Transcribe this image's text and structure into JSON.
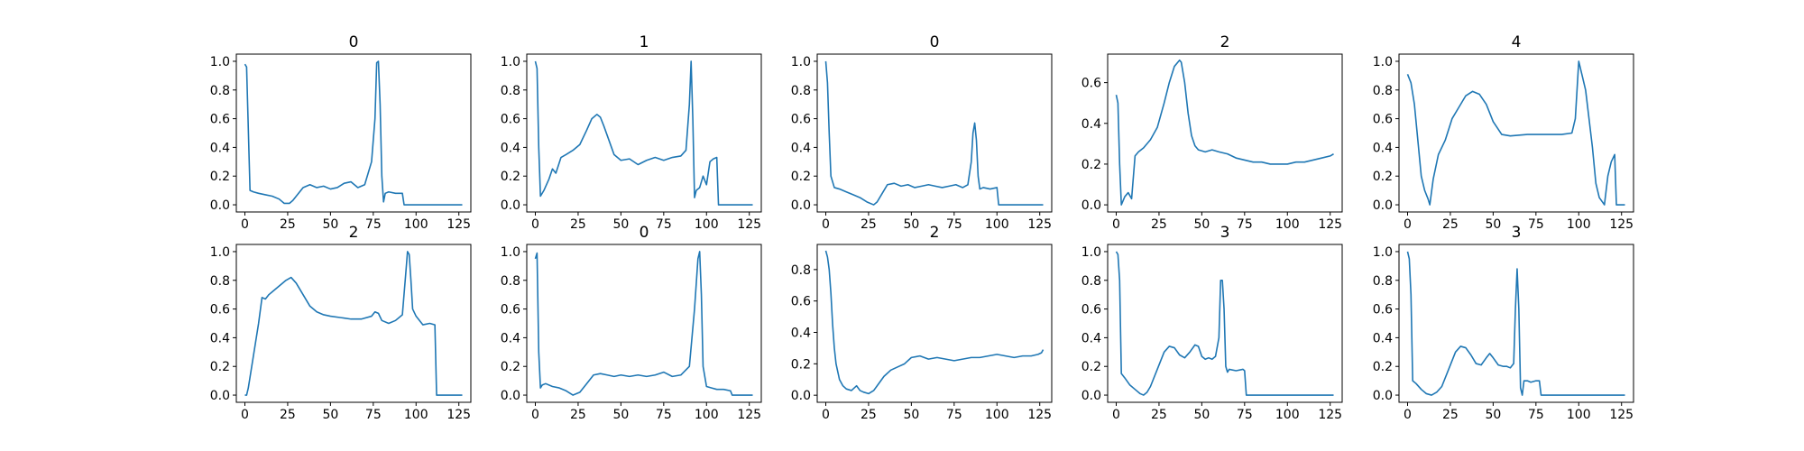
{
  "chart_data": [
    {
      "type": "line",
      "title": "0",
      "xlabel": "",
      "ylabel": "",
      "xlim": [
        -5,
        132
      ],
      "ylim": [
        -0.05,
        1.05
      ],
      "x_ticks": [
        0,
        25,
        50,
        75,
        100,
        125
      ],
      "y_ticks": [
        0.0,
        0.2,
        0.4,
        0.6,
        0.8,
        1.0
      ],
      "color": "#1f77b4",
      "grid": false,
      "series": [
        {
          "x": [
            0,
            1,
            3,
            5,
            8,
            12,
            16,
            20,
            23,
            26,
            28,
            30,
            34,
            38,
            42,
            46,
            50,
            54,
            58,
            62,
            66,
            70,
            74,
            76,
            77,
            78,
            79,
            80,
            81,
            82,
            84,
            88,
            92,
            93,
            94,
            100,
            110,
            120,
            127
          ],
          "y": [
            0.98,
            0.96,
            0.1,
            0.09,
            0.08,
            0.07,
            0.06,
            0.04,
            0.01,
            0.01,
            0.03,
            0.06,
            0.12,
            0.14,
            0.12,
            0.13,
            0.11,
            0.12,
            0.15,
            0.16,
            0.12,
            0.14,
            0.3,
            0.6,
            0.99,
            1.0,
            0.7,
            0.2,
            0.02,
            0.08,
            0.09,
            0.08,
            0.08,
            0.0,
            0.0,
            0.0,
            0.0,
            0.0,
            0.0
          ]
        }
      ]
    },
    {
      "type": "line",
      "title": "1",
      "xlabel": "",
      "ylabel": "",
      "xlim": [
        -5,
        132
      ],
      "ylim": [
        -0.05,
        1.05
      ],
      "x_ticks": [
        0,
        25,
        50,
        75,
        100,
        125
      ],
      "y_ticks": [
        0.0,
        0.2,
        0.4,
        0.6,
        0.8,
        1.0
      ],
      "color": "#1f77b4",
      "grid": false,
      "series": [
        {
          "x": [
            0,
            1,
            2,
            3,
            5,
            8,
            10,
            12,
            15,
            18,
            22,
            26,
            30,
            33,
            36,
            38,
            40,
            43,
            46,
            50,
            55,
            60,
            65,
            70,
            75,
            80,
            85,
            88,
            90,
            91,
            92,
            93,
            94,
            96,
            98,
            100,
            102,
            104,
            106,
            107,
            108,
            112,
            120,
            127
          ],
          "y": [
            1.0,
            0.95,
            0.4,
            0.06,
            0.1,
            0.18,
            0.25,
            0.22,
            0.33,
            0.35,
            0.38,
            0.42,
            0.52,
            0.6,
            0.63,
            0.61,
            0.55,
            0.45,
            0.35,
            0.31,
            0.32,
            0.28,
            0.31,
            0.33,
            0.31,
            0.33,
            0.34,
            0.38,
            0.7,
            1.0,
            0.6,
            0.05,
            0.1,
            0.12,
            0.2,
            0.14,
            0.3,
            0.32,
            0.33,
            0.0,
            0.0,
            0.0,
            0.0,
            0.0
          ]
        }
      ]
    },
    {
      "type": "line",
      "title": "0",
      "xlabel": "",
      "ylabel": "",
      "xlim": [
        -5,
        132
      ],
      "ylim": [
        -0.05,
        1.05
      ],
      "x_ticks": [
        0,
        25,
        50,
        75,
        100,
        125
      ],
      "y_ticks": [
        0.0,
        0.2,
        0.4,
        0.6,
        0.8,
        1.0
      ],
      "color": "#1f77b4",
      "grid": false,
      "series": [
        {
          "x": [
            0,
            1,
            2,
            3,
            5,
            8,
            12,
            16,
            20,
            24,
            28,
            30,
            33,
            36,
            40,
            44,
            48,
            52,
            56,
            60,
            64,
            68,
            72,
            76,
            80,
            83,
            85,
            86,
            87,
            88,
            89,
            90,
            92,
            96,
            100,
            101,
            105,
            115,
            127
          ],
          "y": [
            1.0,
            0.85,
            0.5,
            0.2,
            0.12,
            0.11,
            0.09,
            0.07,
            0.05,
            0.02,
            0.0,
            0.02,
            0.08,
            0.14,
            0.15,
            0.13,
            0.14,
            0.12,
            0.13,
            0.14,
            0.13,
            0.12,
            0.13,
            0.14,
            0.12,
            0.14,
            0.3,
            0.5,
            0.57,
            0.45,
            0.2,
            0.11,
            0.12,
            0.11,
            0.12,
            0.0,
            0.0,
            0.0,
            0.0
          ]
        }
      ]
    },
    {
      "type": "line",
      "title": "2",
      "xlabel": "",
      "ylabel": "",
      "xlim": [
        -5,
        132
      ],
      "ylim": [
        -0.035,
        0.74
      ],
      "x_ticks": [
        0,
        25,
        50,
        75,
        100,
        125
      ],
      "y_ticks": [
        0.0,
        0.2,
        0.4,
        0.6
      ],
      "color": "#1f77b4",
      "grid": false,
      "series": [
        {
          "x": [
            0,
            1,
            2,
            3,
            5,
            7,
            9,
            11,
            13,
            16,
            20,
            24,
            28,
            31,
            34,
            36,
            37,
            38,
            40,
            42,
            44,
            46,
            48,
            52,
            56,
            60,
            65,
            70,
            75,
            80,
            85,
            90,
            95,
            100,
            105,
            110,
            115,
            120,
            125,
            127
          ],
          "y": [
            0.54,
            0.5,
            0.2,
            0.0,
            0.04,
            0.06,
            0.03,
            0.24,
            0.26,
            0.28,
            0.32,
            0.38,
            0.5,
            0.6,
            0.68,
            0.7,
            0.71,
            0.7,
            0.6,
            0.45,
            0.34,
            0.29,
            0.27,
            0.26,
            0.27,
            0.26,
            0.25,
            0.23,
            0.22,
            0.21,
            0.21,
            0.2,
            0.2,
            0.2,
            0.21,
            0.21,
            0.22,
            0.23,
            0.24,
            0.25
          ]
        }
      ]
    },
    {
      "type": "line",
      "title": "4",
      "xlabel": "",
      "ylabel": "",
      "xlim": [
        -5,
        132
      ],
      "ylim": [
        -0.05,
        1.05
      ],
      "x_ticks": [
        0,
        25,
        50,
        75,
        100,
        125
      ],
      "y_ticks": [
        0.0,
        0.2,
        0.4,
        0.6,
        0.8,
        1.0
      ],
      "color": "#1f77b4",
      "grid": false,
      "series": [
        {
          "x": [
            0,
            2,
            4,
            6,
            8,
            10,
            12,
            13,
            15,
            18,
            22,
            26,
            30,
            34,
            38,
            42,
            46,
            50,
            55,
            60,
            70,
            80,
            90,
            96,
            98,
            100,
            102,
            104,
            106,
            108,
            110,
            112,
            115,
            117,
            119,
            121,
            122,
            123,
            125,
            127
          ],
          "y": [
            0.91,
            0.85,
            0.7,
            0.45,
            0.2,
            0.1,
            0.04,
            0.0,
            0.18,
            0.35,
            0.45,
            0.6,
            0.68,
            0.76,
            0.79,
            0.77,
            0.7,
            0.58,
            0.49,
            0.48,
            0.49,
            0.49,
            0.49,
            0.5,
            0.6,
            1.0,
            0.9,
            0.8,
            0.6,
            0.4,
            0.15,
            0.05,
            0.0,
            0.2,
            0.3,
            0.35,
            0.0,
            0.0,
            0.0,
            0.0
          ]
        }
      ]
    },
    {
      "type": "line",
      "title": "2",
      "xlabel": "",
      "ylabel": "",
      "xlim": [
        -5,
        132
      ],
      "ylim": [
        -0.05,
        1.05
      ],
      "x_ticks": [
        0,
        25,
        50,
        75,
        100,
        125
      ],
      "y_ticks": [
        0.0,
        0.2,
        0.4,
        0.6,
        0.8,
        1.0
      ],
      "color": "#1f77b4",
      "grid": false,
      "series": [
        {
          "x": [
            0,
            1,
            2,
            4,
            6,
            8,
            10,
            12,
            14,
            16,
            20,
            24,
            27,
            30,
            34,
            38,
            42,
            46,
            50,
            56,
            62,
            68,
            74,
            76,
            78,
            80,
            84,
            88,
            92,
            94,
            95,
            96,
            97,
            98,
            100,
            104,
            108,
            111,
            112,
            115,
            120,
            127
          ],
          "y": [
            0.0,
            0.0,
            0.05,
            0.2,
            0.35,
            0.5,
            0.68,
            0.67,
            0.7,
            0.72,
            0.76,
            0.8,
            0.82,
            0.78,
            0.7,
            0.62,
            0.58,
            0.56,
            0.55,
            0.54,
            0.53,
            0.53,
            0.55,
            0.58,
            0.57,
            0.52,
            0.5,
            0.52,
            0.56,
            0.85,
            1.0,
            0.98,
            0.8,
            0.6,
            0.55,
            0.49,
            0.5,
            0.49,
            0.0,
            0.0,
            0.0,
            0.0
          ]
        }
      ]
    },
    {
      "type": "line",
      "title": "0",
      "xlabel": "",
      "ylabel": "",
      "xlim": [
        -5,
        132
      ],
      "ylim": [
        -0.05,
        1.05
      ],
      "x_ticks": [
        0,
        25,
        50,
        75,
        100,
        125
      ],
      "y_ticks": [
        0.0,
        0.2,
        0.4,
        0.6,
        0.8,
        1.0
      ],
      "color": "#1f77b4",
      "grid": false,
      "series": [
        {
          "x": [
            0,
            1,
            2,
            3,
            4,
            6,
            10,
            14,
            18,
            22,
            26,
            30,
            34,
            38,
            42,
            46,
            50,
            55,
            60,
            65,
            70,
            75,
            80,
            85,
            90,
            93,
            95,
            96,
            97,
            98,
            100,
            103,
            106,
            110,
            114,
            115,
            120,
            127
          ],
          "y": [
            0.95,
            0.99,
            0.3,
            0.05,
            0.07,
            0.08,
            0.06,
            0.05,
            0.03,
            0.0,
            0.02,
            0.08,
            0.14,
            0.15,
            0.14,
            0.13,
            0.14,
            0.13,
            0.14,
            0.13,
            0.14,
            0.16,
            0.13,
            0.14,
            0.2,
            0.6,
            0.95,
            1.0,
            0.7,
            0.2,
            0.06,
            0.05,
            0.04,
            0.04,
            0.03,
            0.0,
            0.0,
            0.0
          ]
        }
      ]
    },
    {
      "type": "line",
      "title": "2",
      "xlabel": "",
      "ylabel": "",
      "xlim": [
        -5,
        132
      ],
      "ylim": [
        -0.045,
        0.96
      ],
      "x_ticks": [
        0,
        25,
        50,
        75,
        100,
        125
      ],
      "y_ticks": [
        0.0,
        0.2,
        0.4,
        0.6,
        0.8
      ],
      "color": "#1f77b4",
      "grid": false,
      "series": [
        {
          "x": [
            0,
            1,
            2,
            3,
            4,
            5,
            6,
            8,
            10,
            12,
            15,
            18,
            20,
            22,
            25,
            28,
            30,
            34,
            38,
            42,
            46,
            50,
            55,
            60,
            65,
            70,
            75,
            80,
            85,
            90,
            95,
            100,
            105,
            110,
            115,
            120,
            124,
            126,
            127
          ],
          "y": [
            0.92,
            0.88,
            0.8,
            0.65,
            0.45,
            0.3,
            0.2,
            0.1,
            0.06,
            0.04,
            0.03,
            0.06,
            0.03,
            0.02,
            0.01,
            0.03,
            0.06,
            0.12,
            0.16,
            0.18,
            0.2,
            0.24,
            0.25,
            0.23,
            0.24,
            0.23,
            0.22,
            0.23,
            0.24,
            0.24,
            0.25,
            0.26,
            0.25,
            0.24,
            0.25,
            0.25,
            0.26,
            0.27,
            0.29
          ]
        }
      ]
    },
    {
      "type": "line",
      "title": "3",
      "xlabel": "",
      "ylabel": "",
      "xlim": [
        -5,
        132
      ],
      "ylim": [
        -0.05,
        1.05
      ],
      "x_ticks": [
        0,
        25,
        50,
        75,
        100,
        125
      ],
      "y_ticks": [
        0.0,
        0.2,
        0.4,
        0.6,
        0.8,
        1.0
      ],
      "color": "#1f77b4",
      "grid": false,
      "series": [
        {
          "x": [
            0,
            1,
            2,
            3,
            5,
            8,
            11,
            14,
            16,
            18,
            20,
            24,
            28,
            31,
            34,
            37,
            40,
            43,
            46,
            48,
            50,
            52,
            54,
            56,
            58,
            60,
            61,
            62,
            63,
            64,
            65,
            66,
            70,
            74,
            75,
            76,
            78,
            85,
            100,
            115,
            127
          ],
          "y": [
            1.0,
            0.98,
            0.8,
            0.15,
            0.12,
            0.07,
            0.04,
            0.01,
            0.0,
            0.02,
            0.06,
            0.18,
            0.3,
            0.34,
            0.33,
            0.28,
            0.26,
            0.3,
            0.35,
            0.34,
            0.27,
            0.25,
            0.26,
            0.25,
            0.27,
            0.4,
            0.8,
            0.8,
            0.6,
            0.2,
            0.16,
            0.18,
            0.17,
            0.18,
            0.17,
            0.0,
            0.0,
            0.0,
            0.0,
            0.0,
            0.0
          ]
        }
      ]
    },
    {
      "type": "line",
      "title": "3",
      "xlabel": "",
      "ylabel": "",
      "xlim": [
        -5,
        132
      ],
      "ylim": [
        -0.05,
        1.05
      ],
      "x_ticks": [
        0,
        25,
        50,
        75,
        100,
        125
      ],
      "y_ticks": [
        0.0,
        0.2,
        0.4,
        0.6,
        0.8,
        1.0
      ],
      "color": "#1f77b4",
      "grid": false,
      "series": [
        {
          "x": [
            0,
            1,
            2,
            3,
            5,
            8,
            11,
            14,
            17,
            20,
            24,
            28,
            31,
            34,
            37,
            40,
            43,
            46,
            48,
            50,
            53,
            56,
            58,
            60,
            62,
            63,
            64,
            65,
            66,
            67,
            68,
            70,
            72,
            75,
            77,
            78,
            85,
            100,
            115,
            127
          ],
          "y": [
            1.0,
            0.95,
            0.7,
            0.1,
            0.08,
            0.04,
            0.01,
            0.0,
            0.02,
            0.06,
            0.18,
            0.3,
            0.34,
            0.33,
            0.28,
            0.22,
            0.21,
            0.26,
            0.29,
            0.26,
            0.21,
            0.2,
            0.2,
            0.19,
            0.22,
            0.6,
            0.88,
            0.6,
            0.05,
            0.0,
            0.1,
            0.1,
            0.09,
            0.1,
            0.1,
            0.0,
            0.0,
            0.0,
            0.0,
            0.0
          ]
        }
      ]
    }
  ]
}
